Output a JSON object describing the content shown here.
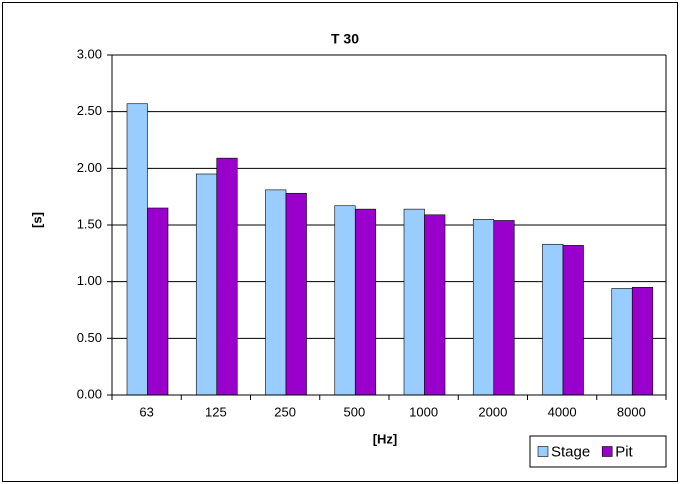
{
  "chart_data": {
    "type": "bar",
    "title": "T 30",
    "x_label": "[Hz]",
    "y_label": "[s]",
    "categories": [
      "63",
      "125",
      "250",
      "500",
      "1000",
      "2000",
      "4000",
      "8000"
    ],
    "series": [
      {
        "name": "Stage",
        "color": "#99ccff",
        "values": [
          2.57,
          1.95,
          1.81,
          1.67,
          1.64,
          1.55,
          1.33,
          0.94
        ]
      },
      {
        "name": "Pit",
        "color": "#9900cc",
        "values": [
          1.65,
          2.09,
          1.78,
          1.64,
          1.59,
          1.54,
          1.32,
          0.95
        ]
      }
    ],
    "ylim": [
      0,
      3
    ],
    "yticks": [
      {
        "value": 0,
        "label": "0.00"
      },
      {
        "value": 0.5,
        "label": "0.50"
      },
      {
        "value": 1,
        "label": "1.00"
      },
      {
        "value": 1.5,
        "label": "1.50"
      },
      {
        "value": 2,
        "label": "2.00"
      },
      {
        "value": 2.5,
        "label": "2.50"
      },
      {
        "value": 3,
        "label": "3.00"
      }
    ],
    "grid": true,
    "legend": "lower right"
  }
}
